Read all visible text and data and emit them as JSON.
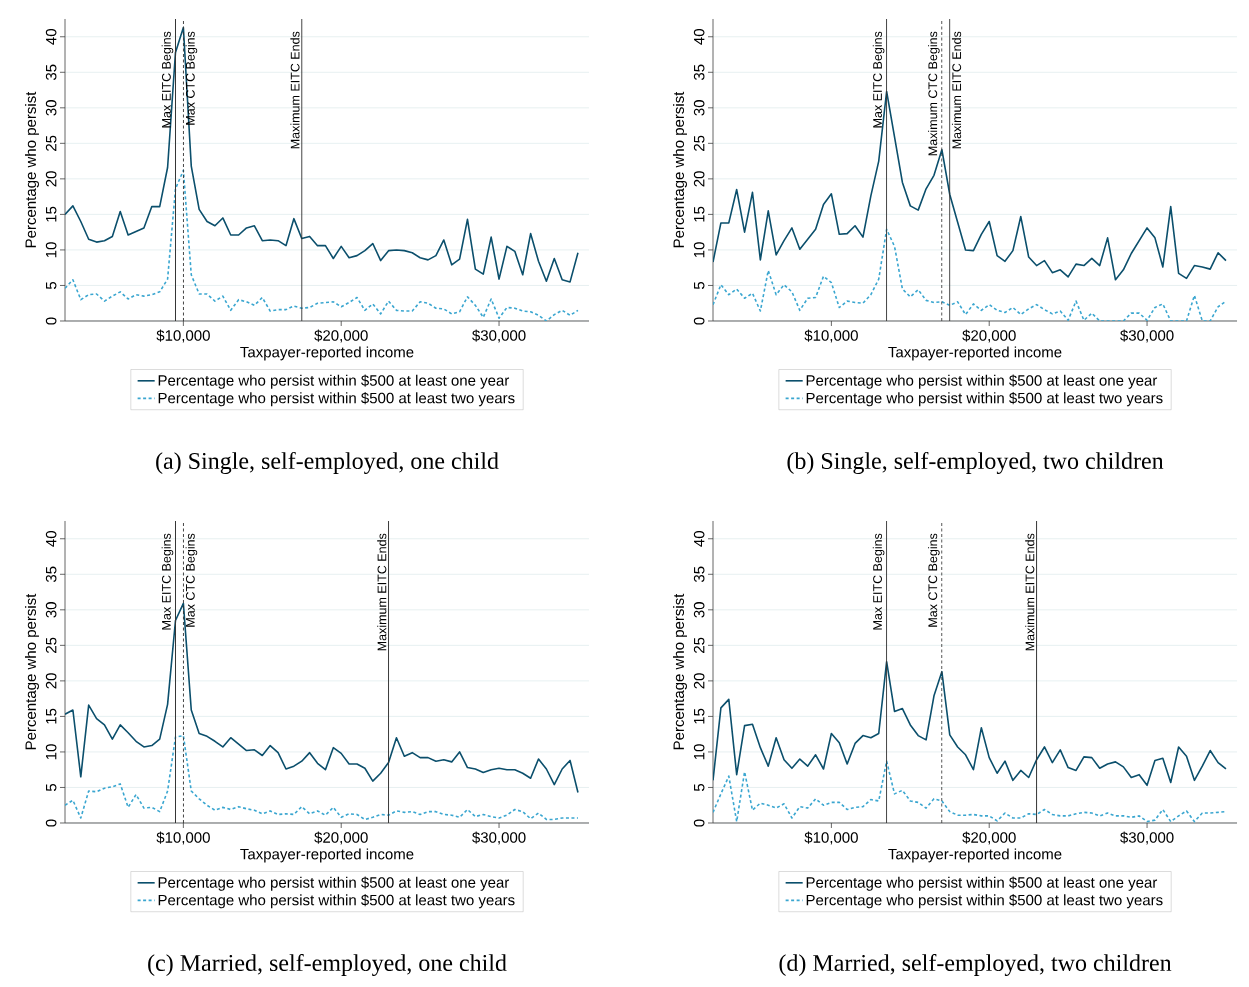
{
  "chart_data": [
    {
      "type": "line",
      "title": "(a) Single, self-employed, one child",
      "xlabel": "Taxpayer-reported income",
      "ylabel": "Percentage who persist",
      "x": [
        2500,
        3000,
        3500,
        4000,
        4500,
        5000,
        5500,
        6000,
        6500,
        7000,
        7500,
        8000,
        8500,
        9000,
        9500,
        10000,
        10500,
        11000,
        11500,
        12000,
        12500,
        13000,
        13500,
        14000,
        14500,
        15000,
        15500,
        16000,
        16500,
        17000,
        17500,
        18000,
        18500,
        19000,
        19500,
        20000,
        20500,
        21000,
        21500,
        22000,
        22500,
        23000,
        23500,
        24000,
        24500,
        25000,
        25500,
        26000,
        26500,
        27000,
        27500,
        28000,
        28500,
        29000,
        29500,
        30000,
        30500,
        31000,
        31500,
        32000,
        32500,
        33000,
        33500,
        34000,
        34500,
        35000
      ],
      "series": [
        {
          "name": "Percentage who persist within $500 at least one year",
          "color": "#0b4f6c",
          "line_style": "solid",
          "values": [
            15.0,
            16.2,
            14.0,
            11.5,
            11.1,
            11.3,
            11.9,
            15.4,
            12.1,
            12.6,
            13.1,
            16.1,
            16.1,
            21.6,
            37.8,
            41.3,
            21.8,
            15.7,
            14.0,
            13.4,
            14.5,
            12.1,
            12.1,
            13.1,
            13.4,
            11.3,
            11.4,
            11.3,
            10.6,
            14.4,
            11.6,
            11.9,
            10.6,
            10.6,
            8.8,
            10.5,
            8.9,
            9.2,
            9.9,
            10.9,
            8.5,
            9.9,
            10.0,
            9.9,
            9.6,
            8.9,
            8.6,
            9.2,
            11.4,
            7.9,
            8.7,
            14.3,
            7.3,
            6.6,
            11.8,
            5.9,
            10.5,
            9.8,
            6.5,
            12.3,
            8.4,
            5.6,
            8.8,
            5.8,
            5.5,
            9.6
          ]
        },
        {
          "name": "Percentage who persist within $500 at least two years",
          "color": "#3aa6d0",
          "line_style": "dashed",
          "values": [
            4.6,
            5.8,
            3.0,
            3.7,
            3.8,
            2.8,
            3.5,
            4.1,
            3.1,
            3.7,
            3.5,
            3.7,
            4.1,
            5.9,
            18.6,
            21.2,
            6.5,
            3.8,
            3.8,
            2.8,
            3.5,
            1.5,
            3.0,
            2.7,
            2.2,
            3.3,
            1.4,
            1.6,
            1.6,
            2.1,
            1.8,
            1.9,
            2.5,
            2.6,
            2.7,
            2.0,
            2.6,
            3.3,
            1.5,
            2.4,
            1.0,
            2.8,
            1.5,
            1.4,
            1.4,
            2.7,
            2.5,
            1.8,
            1.7,
            1.0,
            1.3,
            3.4,
            2.2,
            0.5,
            3.1,
            0.4,
            1.9,
            1.8,
            1.4,
            1.3,
            0.8,
            0.0,
            0.9,
            1.5,
            0.8,
            1.5
          ]
        }
      ],
      "xlim": [
        2500,
        35700
      ],
      "ylim": [
        0,
        42.5
      ],
      "xticks": [
        {
          "value": 10000,
          "label": "$10,000"
        },
        {
          "value": 20000,
          "label": "$20,000"
        },
        {
          "value": 30000,
          "label": "$30,000"
        }
      ],
      "yticks": [
        0,
        5,
        10,
        15,
        20,
        25,
        30,
        35,
        40
      ],
      "grid": "y",
      "legend": "bottom",
      "ref_lines": [
        {
          "axis": "x",
          "value": 9500,
          "label": "Max EITC Begins",
          "color": "#333333",
          "line_style": "solid"
        },
        {
          "axis": "x",
          "value": 10000,
          "label": "Max CTC Begins",
          "color": "#333333",
          "line_style": "dashed"
        },
        {
          "axis": "x",
          "value": 17500,
          "label": "Maximum EITC Ends",
          "color": "#333333",
          "line_style": "solid"
        }
      ]
    },
    {
      "type": "line",
      "title": "(b) Single, self-employed, two children",
      "xlabel": "Taxpayer-reported income",
      "ylabel": "Percentage who persist",
      "x": [
        2500,
        3000,
        3500,
        4000,
        4500,
        5000,
        5500,
        6000,
        6500,
        7000,
        7500,
        8000,
        8500,
        9000,
        9500,
        10000,
        10500,
        11000,
        11500,
        12000,
        12500,
        13000,
        13500,
        14000,
        14500,
        15000,
        15500,
        16000,
        16500,
        17000,
        17500,
        18000,
        18500,
        19000,
        19500,
        20000,
        20500,
        21000,
        21500,
        22000,
        22500,
        23000,
        23500,
        24000,
        24500,
        25000,
        25500,
        26000,
        26500,
        27000,
        27500,
        28000,
        28500,
        29000,
        29500,
        30000,
        30500,
        31000,
        31500,
        32000,
        32500,
        33000,
        33500,
        34000,
        34500,
        35000
      ],
      "series": [
        {
          "name": "Percentage who persist within $500 at least one year",
          "color": "#0b4f6c",
          "line_style": "solid",
          "values": [
            8.3,
            13.8,
            13.8,
            18.5,
            12.5,
            18.1,
            8.6,
            15.5,
            9.3,
            11.3,
            13.1,
            10.1,
            11.5,
            12.9,
            16.4,
            17.9,
            12.2,
            12.3,
            13.4,
            11.8,
            17.6,
            22.5,
            32.3,
            25.9,
            19.5,
            16.2,
            15.6,
            18.6,
            20.5,
            24.1,
            17.8,
            13.9,
            10.0,
            9.9,
            12.2,
            14.0,
            9.2,
            8.4,
            9.9,
            14.7,
            9.0,
            7.8,
            8.5,
            6.8,
            7.2,
            6.2,
            8.0,
            7.8,
            8.8,
            7.8,
            11.7,
            5.8,
            7.2,
            9.5,
            11.3,
            13.1,
            11.7,
            7.6,
            16.1,
            6.7,
            6.0,
            7.8,
            7.6,
            7.3,
            9.6,
            8.5
          ]
        },
        {
          "name": "Percentage who persist within $500 at least two years",
          "color": "#3aa6d0",
          "line_style": "dashed",
          "values": [
            2.3,
            5.1,
            3.7,
            4.5,
            3.2,
            3.9,
            1.4,
            7.1,
            3.7,
            5.1,
            4.1,
            1.5,
            3.2,
            3.3,
            6.3,
            5.4,
            1.9,
            2.8,
            2.6,
            2.5,
            3.7,
            5.9,
            12.9,
            10.5,
            4.5,
            3.4,
            4.4,
            2.9,
            2.6,
            2.7,
            2.2,
            2.7,
            0.9,
            2.4,
            1.5,
            2.3,
            1.5,
            1.2,
            1.9,
            0.9,
            1.7,
            2.3,
            1.6,
            1.0,
            1.4,
            0.1,
            2.8,
            0.1,
            1.1,
            0,
            0,
            0,
            0,
            1.1,
            1.1,
            0.1,
            1.9,
            2.4,
            0,
            0,
            0,
            3.6,
            0,
            0,
            2.0,
            2.8
          ]
        }
      ],
      "xlim": [
        2500,
        35700
      ],
      "ylim": [
        0,
        42.5
      ],
      "xticks": [
        {
          "value": 10000,
          "label": "$10,000"
        },
        {
          "value": 20000,
          "label": "$20,000"
        },
        {
          "value": 30000,
          "label": "$30,000"
        }
      ],
      "yticks": [
        0,
        5,
        10,
        15,
        20,
        25,
        30,
        35,
        40
      ],
      "grid": "y",
      "legend": "bottom",
      "ref_lines": [
        {
          "axis": "x",
          "value": 13500,
          "label": "Max EITC Begins",
          "color": "#333333",
          "line_style": "solid"
        },
        {
          "axis": "x",
          "value": 17000,
          "label": "Maximum CTC Begins",
          "color": "#333333",
          "line_style": "dashed"
        },
        {
          "axis": "x",
          "value": 17500,
          "label": "Maximum EITC Ends",
          "color": "#333333",
          "line_style": "solid"
        }
      ]
    },
    {
      "type": "line",
      "title": "(c) Married, self-employed, one child",
      "xlabel": "Taxpayer-reported income",
      "ylabel": "Percentage who persist",
      "x": [
        2500,
        3000,
        3500,
        4000,
        4500,
        5000,
        5500,
        6000,
        6500,
        7000,
        7500,
        8000,
        8500,
        9000,
        9500,
        10000,
        10500,
        11000,
        11500,
        12000,
        12500,
        13000,
        13500,
        14000,
        14500,
        15000,
        15500,
        16000,
        16500,
        17000,
        17500,
        18000,
        18500,
        19000,
        19500,
        20000,
        20500,
        21000,
        21500,
        22000,
        22500,
        23000,
        23500,
        24000,
        24500,
        25000,
        25500,
        26000,
        26500,
        27000,
        27500,
        28000,
        28500,
        29000,
        29500,
        30000,
        30500,
        31000,
        31500,
        32000,
        32500,
        33000,
        33500,
        34000,
        34500,
        35000
      ],
      "series": [
        {
          "name": "Percentage who persist within $500 at least one year",
          "color": "#0b4f6c",
          "line_style": "solid",
          "values": [
            15.3,
            15.9,
            6.5,
            16.6,
            14.7,
            13.8,
            11.8,
            13.8,
            12.7,
            11.5,
            10.7,
            10.9,
            11.8,
            16.7,
            28.5,
            30.9,
            15.9,
            12.6,
            12.2,
            11.5,
            10.7,
            12.0,
            11.1,
            10.2,
            10.3,
            9.5,
            10.9,
            9.9,
            7.6,
            8.0,
            8.7,
            9.9,
            8.4,
            7.5,
            10.6,
            9.8,
            8.3,
            8.3,
            7.7,
            5.9,
            7.0,
            8.5,
            12.0,
            9.4,
            9.9,
            9.2,
            9.2,
            8.7,
            8.9,
            8.6,
            10.0,
            7.8,
            7.6,
            7.1,
            7.5,
            7.7,
            7.5,
            7.5,
            7.0,
            6.3,
            9.0,
            7.6,
            5.4,
            7.6,
            8.8,
            4.3
          ]
        },
        {
          "name": "Percentage who persist within $500 at least two years",
          "color": "#3aa6d0",
          "line_style": "dashed",
          "values": [
            2.5,
            3.2,
            0.7,
            4.5,
            4.4,
            4.9,
            5.1,
            5.5,
            2.2,
            4.0,
            2.1,
            2.2,
            1.6,
            4.5,
            12.1,
            12.3,
            4.5,
            3.4,
            2.5,
            1.8,
            2.2,
            1.9,
            2.3,
            2.0,
            1.8,
            1.3,
            1.7,
            1.2,
            1.3,
            1.2,
            2.3,
            1.3,
            1.7,
            1.1,
            2.2,
            0.8,
            1.3,
            1.2,
            0.5,
            0.8,
            1.2,
            1.1,
            1.7,
            1.5,
            1.6,
            1.2,
            1.6,
            1.6,
            1.2,
            1.1,
            0.8,
            1.9,
            0.9,
            1.2,
            0.9,
            0.7,
            1.1,
            1.9,
            1.6,
            0.6,
            1.4,
            0.5,
            0.5,
            0.7,
            0.7,
            0.7
          ]
        }
      ],
      "xlim": [
        2500,
        35700
      ],
      "ylim": [
        0,
        42.5
      ],
      "xticks": [
        {
          "value": 10000,
          "label": "$10,000"
        },
        {
          "value": 20000,
          "label": "$20,000"
        },
        {
          "value": 30000,
          "label": "$30,000"
        }
      ],
      "yticks": [
        0,
        5,
        10,
        15,
        20,
        25,
        30,
        35,
        40
      ],
      "grid": "y",
      "legend": "bottom",
      "ref_lines": [
        {
          "axis": "x",
          "value": 9500,
          "label": "Max EITC Begins",
          "color": "#333333",
          "line_style": "solid"
        },
        {
          "axis": "x",
          "value": 10000,
          "label": "Max CTC Begins",
          "color": "#333333",
          "line_style": "dashed"
        },
        {
          "axis": "x",
          "value": 23000,
          "label": "Maximum EITC Ends",
          "color": "#333333",
          "line_style": "solid"
        }
      ]
    },
    {
      "type": "line",
      "title": "(d) Married, self-employed, two children",
      "xlabel": "Taxpayer-reported income",
      "ylabel": "Percentage who persist",
      "x": [
        2500,
        3000,
        3500,
        4000,
        4500,
        5000,
        5500,
        6000,
        6500,
        7000,
        7500,
        8000,
        8500,
        9000,
        9500,
        10000,
        10500,
        11000,
        11500,
        12000,
        12500,
        13000,
        13500,
        14000,
        14500,
        15000,
        15500,
        16000,
        16500,
        17000,
        17500,
        18000,
        18500,
        19000,
        19500,
        20000,
        20500,
        21000,
        21500,
        22000,
        22500,
        23000,
        23500,
        24000,
        24500,
        25000,
        25500,
        26000,
        26500,
        27000,
        27500,
        28000,
        28500,
        29000,
        29500,
        30000,
        30500,
        31000,
        31500,
        32000,
        32500,
        33000,
        33500,
        34000,
        34500,
        35000
      ],
      "series": [
        {
          "name": "Percentage who persist within $500 at least one year",
          "color": "#0b4f6c",
          "line_style": "solid",
          "values": [
            6.0,
            16.2,
            17.4,
            6.8,
            13.7,
            13.9,
            10.6,
            8.0,
            12.0,
            8.9,
            7.7,
            9.0,
            8.0,
            9.6,
            7.6,
            12.6,
            11.3,
            8.3,
            11.2,
            12.3,
            12.0,
            12.6,
            22.7,
            15.7,
            16.1,
            13.8,
            12.3,
            11.7,
            17.9,
            21.3,
            12.4,
            10.7,
            9.6,
            7.5,
            13.4,
            9.2,
            7.0,
            8.7,
            6.0,
            7.4,
            6.4,
            8.9,
            10.7,
            8.5,
            10.3,
            7.8,
            7.4,
            9.3,
            9.2,
            7.7,
            8.3,
            8.6,
            7.9,
            6.4,
            6.8,
            5.3,
            8.8,
            9.1,
            5.7,
            10.7,
            9.4,
            6.0,
            8.0,
            10.2,
            8.5,
            7.6
          ]
        },
        {
          "name": "Percentage who persist within $500 at least two years",
          "color": "#3aa6d0",
          "line_style": "dashed",
          "values": [
            1.5,
            4.1,
            6.6,
            0.2,
            7.2,
            1.8,
            2.8,
            2.5,
            2.1,
            2.7,
            0.7,
            2.3,
            2.1,
            3.4,
            2.5,
            2.9,
            2.9,
            1.9,
            2.2,
            2.3,
            3.3,
            3.1,
            8.7,
            4.1,
            4.6,
            3.1,
            2.9,
            2.1,
            3.4,
            3.1,
            1.6,
            1.1,
            1.1,
            1.2,
            1.0,
            1.0,
            0.3,
            1.4,
            0.7,
            0.7,
            1.3,
            1.2,
            1.9,
            1.2,
            1.0,
            1.0,
            1.3,
            1.5,
            1.4,
            1.0,
            1.4,
            1.0,
            1.0,
            0.8,
            1.0,
            0.2,
            0.4,
            1.9,
            0.2,
            1.0,
            1.7,
            0.2,
            1.4,
            1.4,
            1.5,
            1.6
          ]
        }
      ],
      "xlim": [
        2500,
        35700
      ],
      "ylim": [
        0,
        42.5
      ],
      "xticks": [
        {
          "value": 10000,
          "label": "$10,000"
        },
        {
          "value": 20000,
          "label": "$20,000"
        },
        {
          "value": 30000,
          "label": "$30,000"
        }
      ],
      "yticks": [
        0,
        5,
        10,
        15,
        20,
        25,
        30,
        35,
        40
      ],
      "grid": "y",
      "legend": "bottom",
      "ref_lines": [
        {
          "axis": "x",
          "value": 13500,
          "label": "Max EITC Begins",
          "color": "#333333",
          "line_style": "solid"
        },
        {
          "axis": "x",
          "value": 17000,
          "label": "Max CTC Begins",
          "color": "#333333",
          "line_style": "dashed"
        },
        {
          "axis": "x",
          "value": 23000,
          "label": "Maximum EITC Ends",
          "color": "#333333",
          "line_style": "solid"
        }
      ]
    }
  ]
}
